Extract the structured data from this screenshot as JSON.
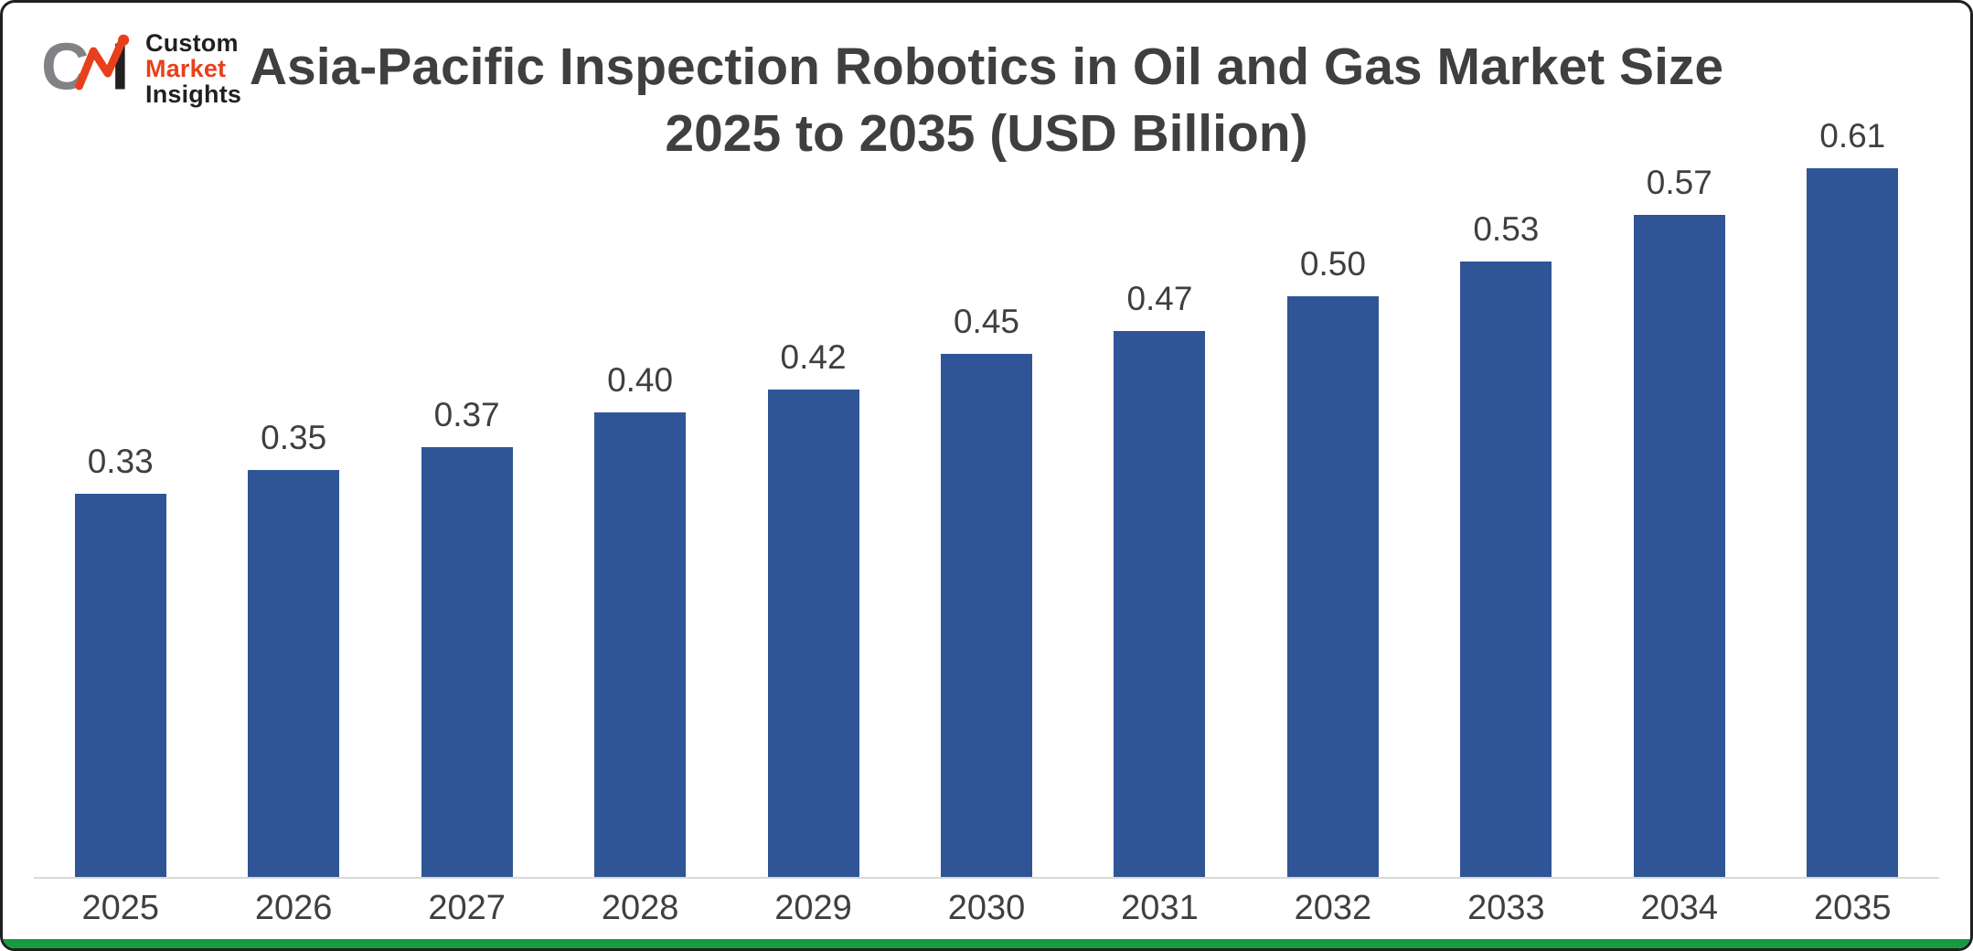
{
  "logo": {
    "mark": "CMI",
    "word1": "Custom",
    "word2": "Market",
    "word3": "Insights"
  },
  "colors": {
    "bar": "#2F5597",
    "title_text": "#3F3F3F",
    "axis_line": "#D9D9D9",
    "frame_border": "#1F1F1F",
    "bottom_strip_green": "#169B3E",
    "logo_gray": "#808285",
    "logo_orange": "#E8401C",
    "logo_dark": "#231F20"
  },
  "chart_data": {
    "type": "bar",
    "title": "Asia-Pacific Inspection Robotics in Oil and Gas Market Size 2025 to 2035 (USD Billion)",
    "title_lines": [
      "Asia-Pacific Inspection Robotics in Oil and Gas Market Size",
      "2025 to 2035 (USD Billion)"
    ],
    "categories": [
      "2025",
      "2026",
      "2027",
      "2028",
      "2029",
      "2030",
      "2031",
      "2032",
      "2033",
      "2034",
      "2035"
    ],
    "values": [
      0.33,
      0.35,
      0.37,
      0.4,
      0.42,
      0.45,
      0.47,
      0.5,
      0.53,
      0.57,
      0.61
    ],
    "value_labels": [
      "0.33",
      "0.35",
      "0.37",
      "0.40",
      "0.42",
      "0.45",
      "0.47",
      "0.50",
      "0.53",
      "0.57",
      "0.61"
    ],
    "xlabel": "",
    "ylabel": "",
    "ylim": [
      0,
      0.65
    ],
    "grid": false,
    "legend": "none",
    "bar_color": "#2F5597",
    "label_color": "#3F3F3F"
  }
}
